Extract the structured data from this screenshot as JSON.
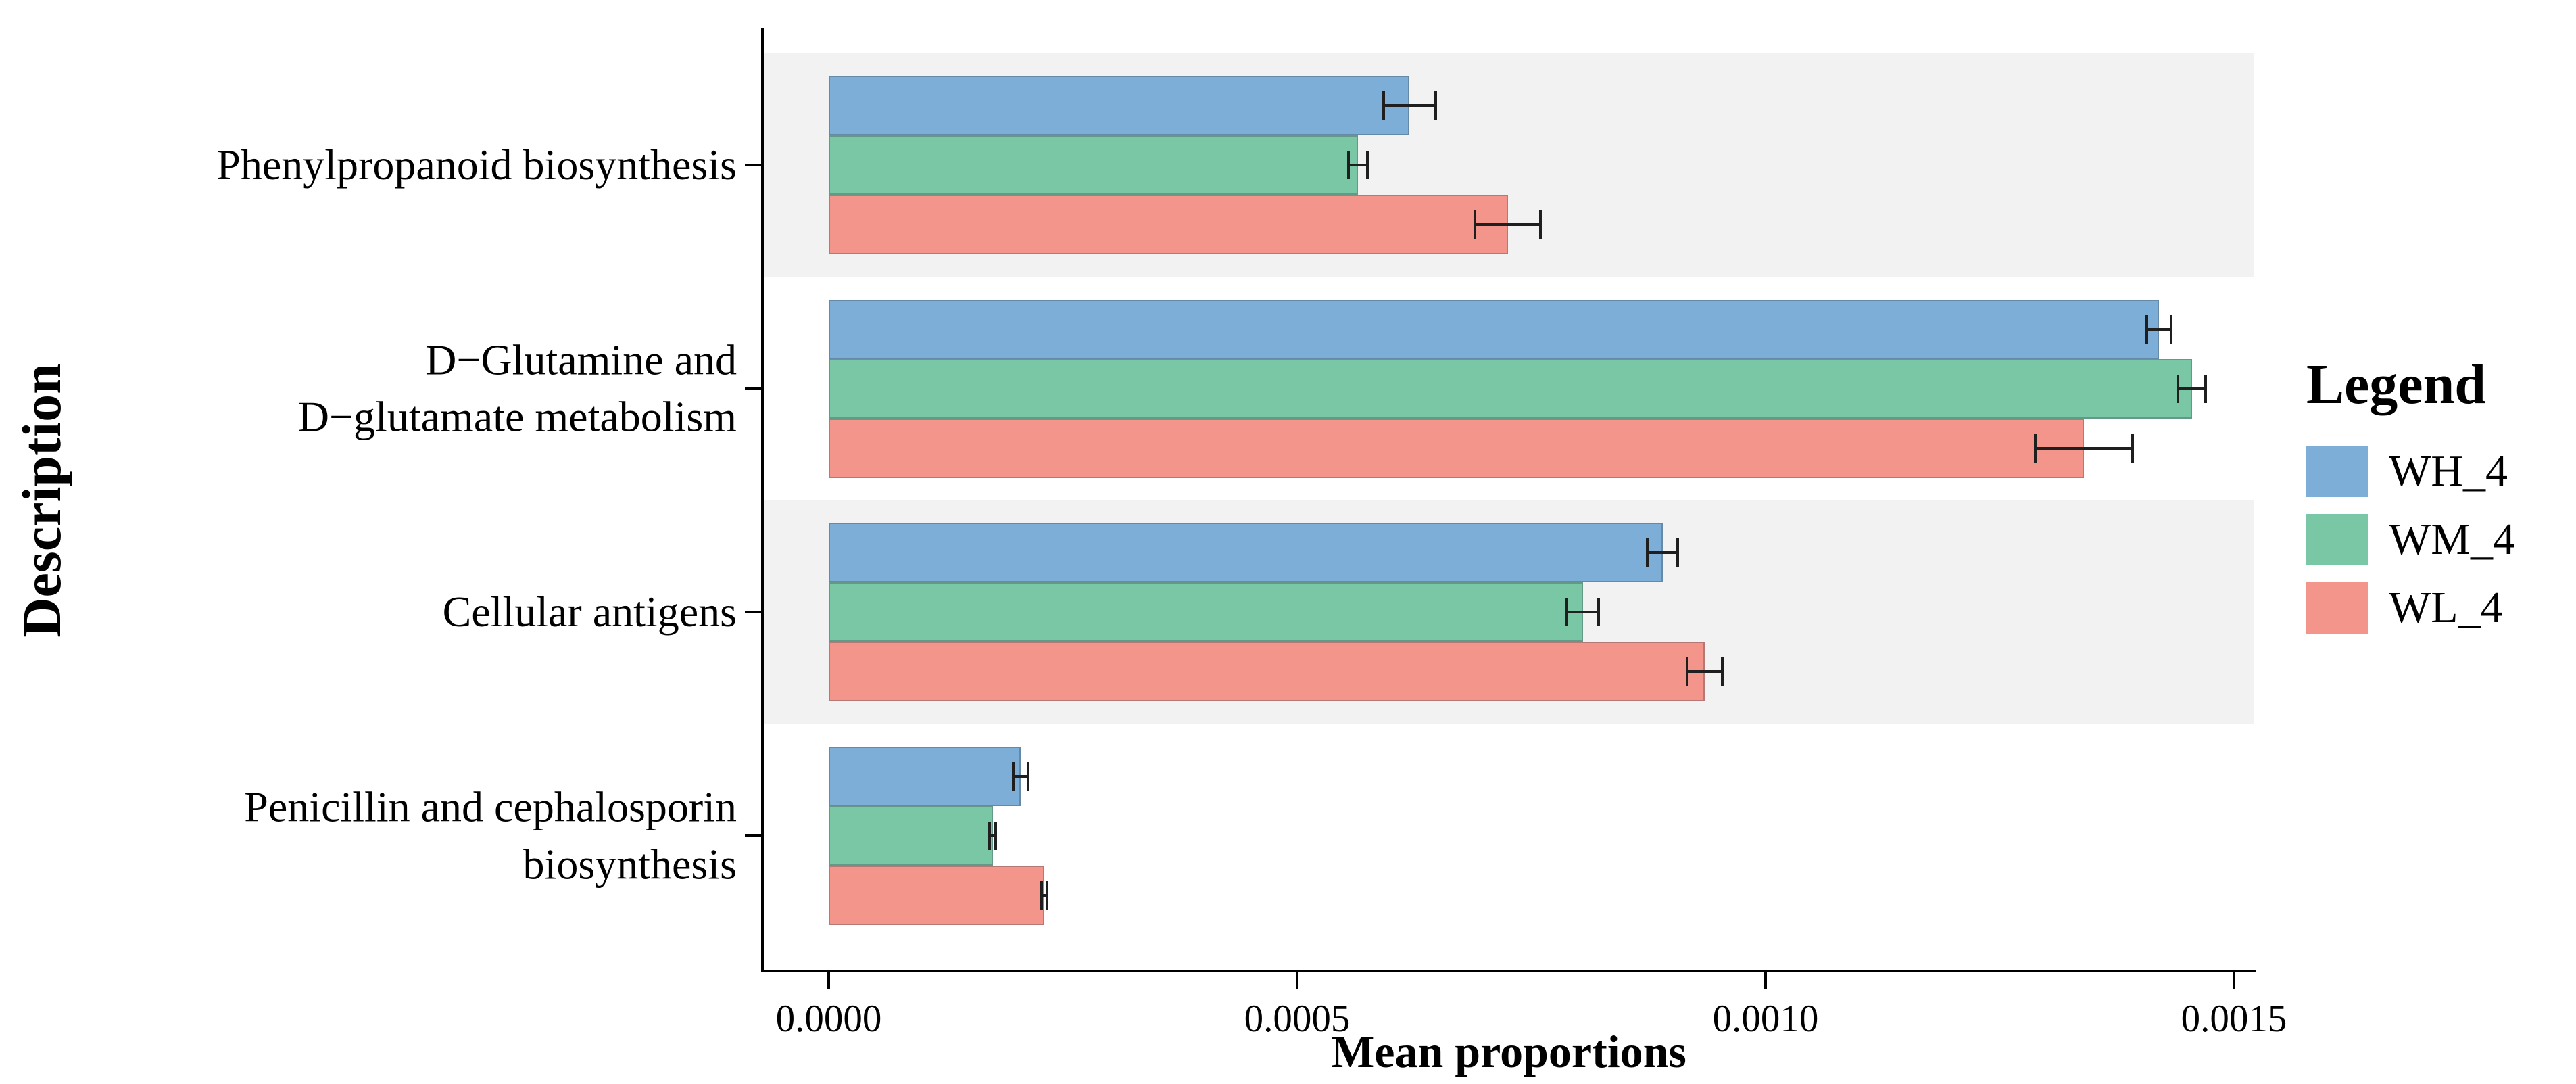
{
  "chart_data": {
    "type": "bar",
    "orientation": "horizontal",
    "title": "",
    "xlabel": "Mean proportions",
    "ylabel": "Description",
    "legend_title": "Legend",
    "legend_position": "right",
    "grid": false,
    "xlim": [
      0,
      0.00159
    ],
    "x_ticks": [
      0,
      0.0005,
      0.001,
      0.0015
    ],
    "x_tick_labels": [
      "0.0000",
      "0.0005",
      "0.0010",
      "0.0015"
    ],
    "row_stripe_color": "#F2F2F2",
    "striped_rows": [
      0,
      2
    ],
    "error_bar_color": "#1f1f1f",
    "categories": [
      "Phenylpropanoid biosynthesis",
      "D−Glutamine and\nD−glutamate metabolism",
      "Cellular antigens",
      "Penicillin and cephalosporin\nbiosynthesis"
    ],
    "series": [
      {
        "name": "WH_4",
        "color": "#7DAED8",
        "values": [
          0.00062,
          0.00142,
          0.00089,
          0.000205
        ],
        "error_margin": [
          2.8e-05,
          1.3e-05,
          1.6e-05,
          8e-06
        ]
      },
      {
        "name": "WM_4",
        "color": "#7AC7A6",
        "values": [
          0.000565,
          0.001455,
          0.000805,
          0.000175
        ],
        "error_margin": [
          1e-05,
          1.5e-05,
          1.7e-05,
          3e-06
        ]
      },
      {
        "name": "WL_4",
        "color": "#F4958B",
        "values": [
          0.000725,
          0.00134,
          0.000935,
          0.00023
        ],
        "error_margin": [
          3.5e-05,
          5.2e-05,
          1.9e-05,
          3e-06
        ]
      }
    ]
  }
}
